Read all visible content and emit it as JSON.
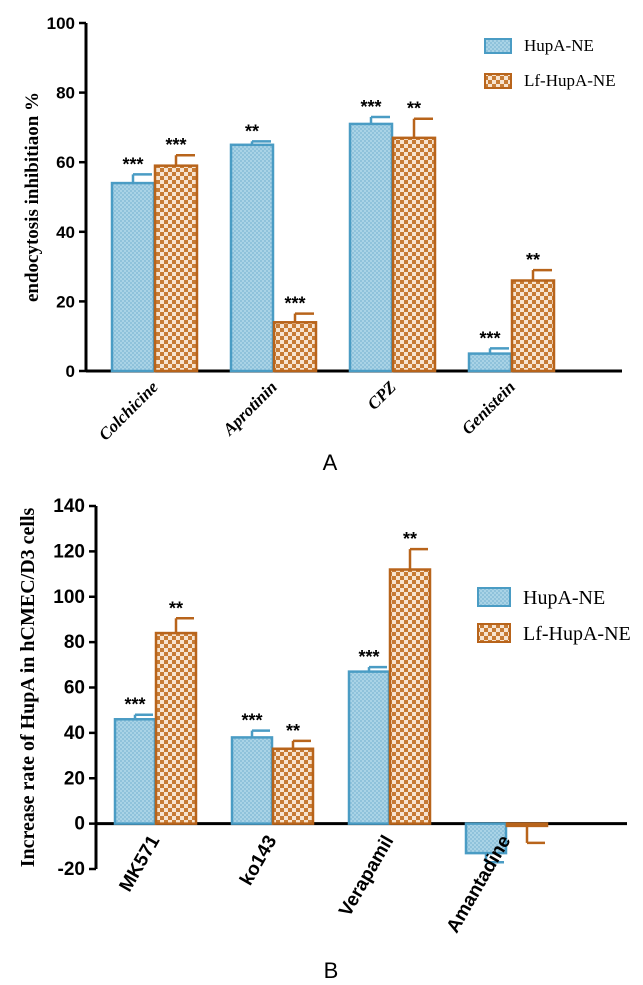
{
  "colors": {
    "hupa_fill": "#a9d3e6",
    "hupa_stroke": "#4a9cc4",
    "lf_fill": "#f5dcc4",
    "lf_stroke": "#b8641b",
    "axis": "#000000"
  },
  "chart_data": [
    {
      "type": "bar",
      "panel_label": "A",
      "ylabel": "endocytosis inhibitiaon %",
      "xlabel": "",
      "ylim": [
        0,
        100
      ],
      "yticks": [
        0,
        20,
        40,
        60,
        80,
        100
      ],
      "categories": [
        "Colchicine",
        "Aprotinin",
        "CPZ",
        "Genistein"
      ],
      "legend_position": "top-right",
      "series": [
        {
          "name": "HupA-NE",
          "values": [
            54,
            65,
            71,
            5
          ],
          "errors": [
            2.5,
            1,
            2,
            1.5
          ],
          "significance": [
            "***",
            "**",
            "***",
            "***"
          ]
        },
        {
          "name": "Lf-HupA-NE",
          "values": [
            59,
            14,
            67,
            26
          ],
          "errors": [
            3,
            2.5,
            5.5,
            3
          ],
          "significance": [
            "***",
            "***",
            "**",
            "**"
          ]
        }
      ]
    },
    {
      "type": "bar",
      "panel_label": "B",
      "ylabel": "Increase rate of HupA in hCMEC/D3 cells",
      "xlabel": "",
      "ylim": [
        -20,
        140
      ],
      "yticks": [
        -20,
        0,
        20,
        40,
        60,
        80,
        100,
        120,
        140
      ],
      "categories": [
        "MK571",
        "ko143",
        "Verapamil",
        "Amantadine"
      ],
      "legend_position": "right",
      "series": [
        {
          "name": "HupA-NE",
          "values": [
            46,
            38,
            67,
            -13
          ],
          "errors": [
            2,
            3,
            2,
            4
          ],
          "significance": [
            "***",
            "***",
            "***",
            ""
          ]
        },
        {
          "name": "Lf-HupA-NE",
          "values": [
            84,
            33,
            112,
            -1
          ],
          "errors": [
            6.5,
            3.5,
            9,
            7.5
          ],
          "significance": [
            "**",
            "**",
            "**",
            ""
          ]
        }
      ]
    }
  ]
}
